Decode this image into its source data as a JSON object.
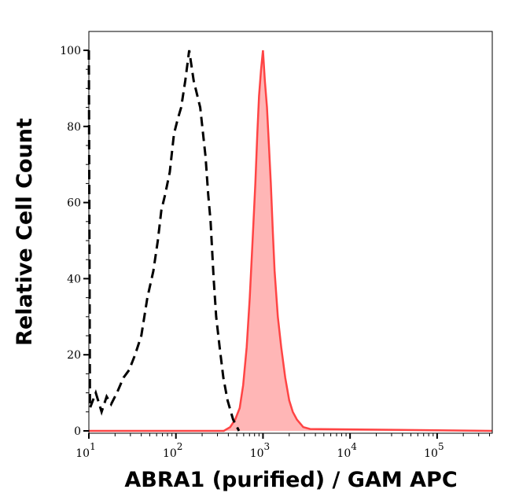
{
  "chart_data": {
    "type": "area",
    "title": "",
    "xlabel": "ABRA1 (purified) / GAM APC",
    "ylabel": "Relative Cell Count",
    "x_scale": "log",
    "xlim": [
      10,
      430000
    ],
    "ylim": [
      0,
      105
    ],
    "grid": false,
    "x_ticks": [
      {
        "base": "10",
        "exp": "1",
        "value": 10
      },
      {
        "base": "10",
        "exp": "2",
        "value": 100
      },
      {
        "base": "10",
        "exp": "3",
        "value": 1000
      },
      {
        "base": "10",
        "exp": "4",
        "value": 10000
      },
      {
        "base": "10",
        "exp": "5",
        "value": 100000
      }
    ],
    "y_ticks": [
      "0",
      "20",
      "40",
      "60",
      "80",
      "100"
    ],
    "series": [
      {
        "style": "dashed-line",
        "color": "#000000",
        "x": [
          10,
          10.3,
          12,
          14,
          16,
          18,
          21,
          25,
          29,
          34,
          40,
          47,
          55,
          62,
          68,
          75,
          85,
          95,
          105,
          115,
          128,
          142,
          160,
          190,
          219,
          235,
          250,
          271,
          290,
          318,
          350,
          392,
          453,
          530
        ],
        "y": [
          100,
          6,
          10,
          5,
          9,
          7,
          10,
          14,
          16,
          20,
          25,
          35,
          42,
          50,
          58,
          62,
          68,
          78,
          82,
          85,
          92,
          100,
          92,
          85,
          72,
          62,
          55,
          40,
          30,
          22,
          14,
          8,
          3,
          0
        ]
      },
      {
        "style": "filled",
        "color": "#ff4444",
        "fill": "#ffb6b6",
        "x": [
          10,
          355,
          420,
          480,
          540,
          592,
          650,
          705,
          760,
          817,
          860,
          900,
          950,
          1000,
          1050,
          1110,
          1170,
          1230,
          1300,
          1360,
          1480,
          1620,
          1800,
          2000,
          2200,
          2450,
          2900,
          3470,
          430000
        ],
        "y": [
          0,
          0,
          1,
          3,
          6,
          12,
          22,
          35,
          50,
          65,
          78,
          88,
          95,
          100,
          92,
          85,
          75,
          65,
          52,
          42,
          30,
          22,
          14,
          8,
          5,
          3,
          1,
          0.5,
          0
        ]
      }
    ]
  }
}
